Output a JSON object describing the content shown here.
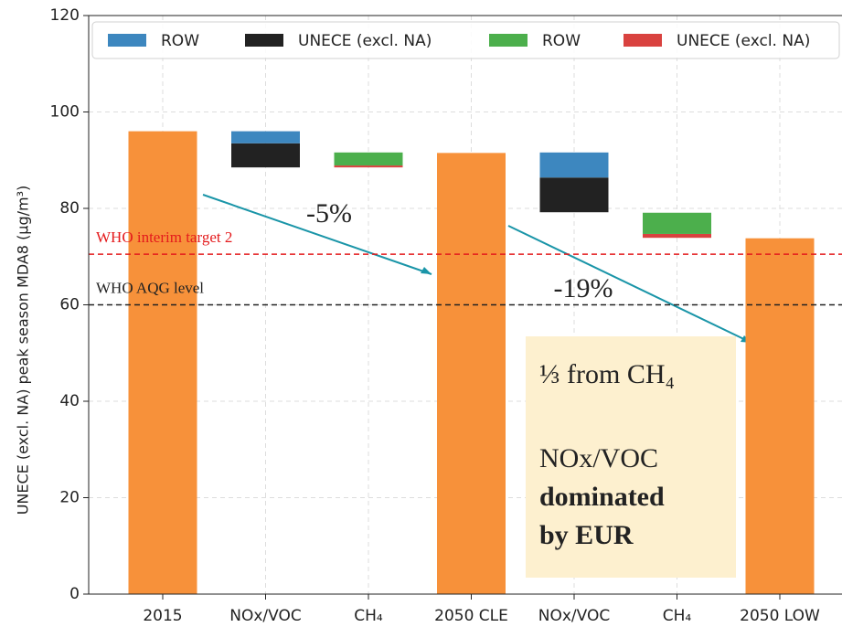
{
  "chart_data": {
    "type": "waterfall",
    "y_label": "UNECE (excl. NA) peak season MDA8 (μg/m³)",
    "categories": [
      "2015",
      "NOx/VOC",
      "CH₄",
      "2050 CLE",
      "NOx/VOC",
      "CH₄",
      "2050 LOW"
    ],
    "totals": {
      "color": "#f7913a",
      "values": [
        96,
        null,
        null,
        91.5,
        null,
        null,
        73.8
      ]
    },
    "base": [
      null,
      88.5,
      88.5,
      null,
      79.2,
      73.9,
      null
    ],
    "series": [
      {
        "name": "ROW",
        "color": "#3d87bf",
        "values": [
          null,
          2.5,
          null,
          null,
          5.2,
          null,
          null
        ]
      },
      {
        "name": "UNECE (excl. NA)",
        "color": "#222222",
        "values": [
          null,
          5,
          null,
          null,
          7.2,
          null,
          null
        ]
      },
      {
        "name": "ROW",
        "color": "#4caf4c",
        "values": [
          null,
          null,
          2.7,
          null,
          null,
          4.4,
          null
        ]
      },
      {
        "name": "UNECE (excl. NA)",
        "color": "#d9423f",
        "values": [
          null,
          null,
          0.4,
          null,
          null,
          0.8,
          null
        ]
      }
    ],
    "ylim": [
      0,
      120
    ],
    "yticks": [
      0,
      20,
      40,
      60,
      80,
      100,
      120
    ],
    "grid": true,
    "hlines": [
      {
        "value": 70.5,
        "label": "WHO interim target 2",
        "color": "#e41a1c"
      },
      {
        "value": 60,
        "label": "WHO AQG level",
        "color": "#222222"
      }
    ],
    "annotations": [
      "-5%",
      "-19%"
    ],
    "note": [
      "⅓ from CH₄",
      "NOx/VOC",
      "dominated",
      "by EUR"
    ]
  }
}
